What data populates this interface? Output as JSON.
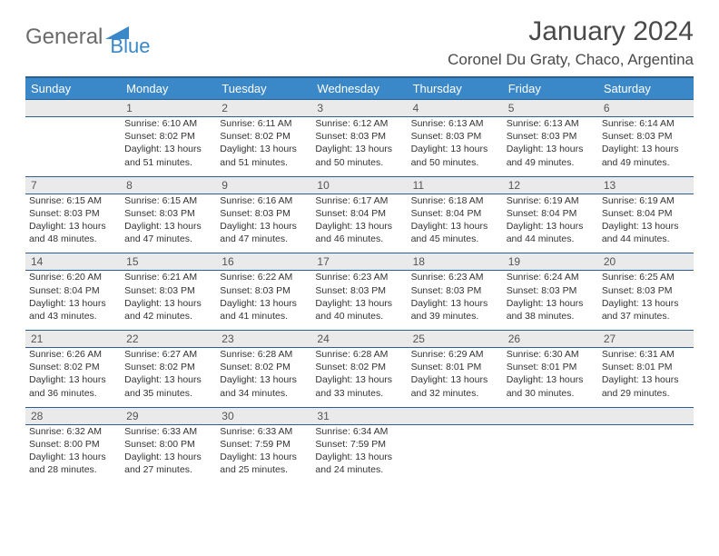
{
  "logo": {
    "word1": "General",
    "word2": "Blue",
    "text_color": "#6b6b6b",
    "accent_color": "#3b88c8"
  },
  "header": {
    "month_title": "January 2024",
    "location": "Coronel Du Graty, Chaco, Argentina"
  },
  "colors": {
    "header_bg": "#3b88c8",
    "row_border": "#2b5f8e",
    "daynum_bg": "#eaeaea"
  },
  "columns": [
    "Sunday",
    "Monday",
    "Tuesday",
    "Wednesday",
    "Thursday",
    "Friday",
    "Saturday"
  ],
  "weeks": [
    {
      "nums": [
        "",
        "1",
        "2",
        "3",
        "4",
        "5",
        "6"
      ],
      "cells": [
        null,
        {
          "sunrise": "6:10 AM",
          "sunset": "8:02 PM",
          "daylight": "13 hours and 51 minutes."
        },
        {
          "sunrise": "6:11 AM",
          "sunset": "8:02 PM",
          "daylight": "13 hours and 51 minutes."
        },
        {
          "sunrise": "6:12 AM",
          "sunset": "8:03 PM",
          "daylight": "13 hours and 50 minutes."
        },
        {
          "sunrise": "6:13 AM",
          "sunset": "8:03 PM",
          "daylight": "13 hours and 50 minutes."
        },
        {
          "sunrise": "6:13 AM",
          "sunset": "8:03 PM",
          "daylight": "13 hours and 49 minutes."
        },
        {
          "sunrise": "6:14 AM",
          "sunset": "8:03 PM",
          "daylight": "13 hours and 49 minutes."
        }
      ]
    },
    {
      "nums": [
        "7",
        "8",
        "9",
        "10",
        "11",
        "12",
        "13"
      ],
      "cells": [
        {
          "sunrise": "6:15 AM",
          "sunset": "8:03 PM",
          "daylight": "13 hours and 48 minutes."
        },
        {
          "sunrise": "6:15 AM",
          "sunset": "8:03 PM",
          "daylight": "13 hours and 47 minutes."
        },
        {
          "sunrise": "6:16 AM",
          "sunset": "8:03 PM",
          "daylight": "13 hours and 47 minutes."
        },
        {
          "sunrise": "6:17 AM",
          "sunset": "8:04 PM",
          "daylight": "13 hours and 46 minutes."
        },
        {
          "sunrise": "6:18 AM",
          "sunset": "8:04 PM",
          "daylight": "13 hours and 45 minutes."
        },
        {
          "sunrise": "6:19 AM",
          "sunset": "8:04 PM",
          "daylight": "13 hours and 44 minutes."
        },
        {
          "sunrise": "6:19 AM",
          "sunset": "8:04 PM",
          "daylight": "13 hours and 44 minutes."
        }
      ]
    },
    {
      "nums": [
        "14",
        "15",
        "16",
        "17",
        "18",
        "19",
        "20"
      ],
      "cells": [
        {
          "sunrise": "6:20 AM",
          "sunset": "8:04 PM",
          "daylight": "13 hours and 43 minutes."
        },
        {
          "sunrise": "6:21 AM",
          "sunset": "8:03 PM",
          "daylight": "13 hours and 42 minutes."
        },
        {
          "sunrise": "6:22 AM",
          "sunset": "8:03 PM",
          "daylight": "13 hours and 41 minutes."
        },
        {
          "sunrise": "6:23 AM",
          "sunset": "8:03 PM",
          "daylight": "13 hours and 40 minutes."
        },
        {
          "sunrise": "6:23 AM",
          "sunset": "8:03 PM",
          "daylight": "13 hours and 39 minutes."
        },
        {
          "sunrise": "6:24 AM",
          "sunset": "8:03 PM",
          "daylight": "13 hours and 38 minutes."
        },
        {
          "sunrise": "6:25 AM",
          "sunset": "8:03 PM",
          "daylight": "13 hours and 37 minutes."
        }
      ]
    },
    {
      "nums": [
        "21",
        "22",
        "23",
        "24",
        "25",
        "26",
        "27"
      ],
      "cells": [
        {
          "sunrise": "6:26 AM",
          "sunset": "8:02 PM",
          "daylight": "13 hours and 36 minutes."
        },
        {
          "sunrise": "6:27 AM",
          "sunset": "8:02 PM",
          "daylight": "13 hours and 35 minutes."
        },
        {
          "sunrise": "6:28 AM",
          "sunset": "8:02 PM",
          "daylight": "13 hours and 34 minutes."
        },
        {
          "sunrise": "6:28 AM",
          "sunset": "8:02 PM",
          "daylight": "13 hours and 33 minutes."
        },
        {
          "sunrise": "6:29 AM",
          "sunset": "8:01 PM",
          "daylight": "13 hours and 32 minutes."
        },
        {
          "sunrise": "6:30 AM",
          "sunset": "8:01 PM",
          "daylight": "13 hours and 30 minutes."
        },
        {
          "sunrise": "6:31 AM",
          "sunset": "8:01 PM",
          "daylight": "13 hours and 29 minutes."
        }
      ]
    },
    {
      "nums": [
        "28",
        "29",
        "30",
        "31",
        "",
        "",
        ""
      ],
      "cells": [
        {
          "sunrise": "6:32 AM",
          "sunset": "8:00 PM",
          "daylight": "13 hours and 28 minutes."
        },
        {
          "sunrise": "6:33 AM",
          "sunset": "8:00 PM",
          "daylight": "13 hours and 27 minutes."
        },
        {
          "sunrise": "6:33 AM",
          "sunset": "7:59 PM",
          "daylight": "13 hours and 25 minutes."
        },
        {
          "sunrise": "6:34 AM",
          "sunset": "7:59 PM",
          "daylight": "13 hours and 24 minutes."
        },
        null,
        null,
        null
      ]
    }
  ],
  "labels": {
    "sunrise": "Sunrise: ",
    "sunset": "Sunset: ",
    "daylight": "Daylight: "
  }
}
